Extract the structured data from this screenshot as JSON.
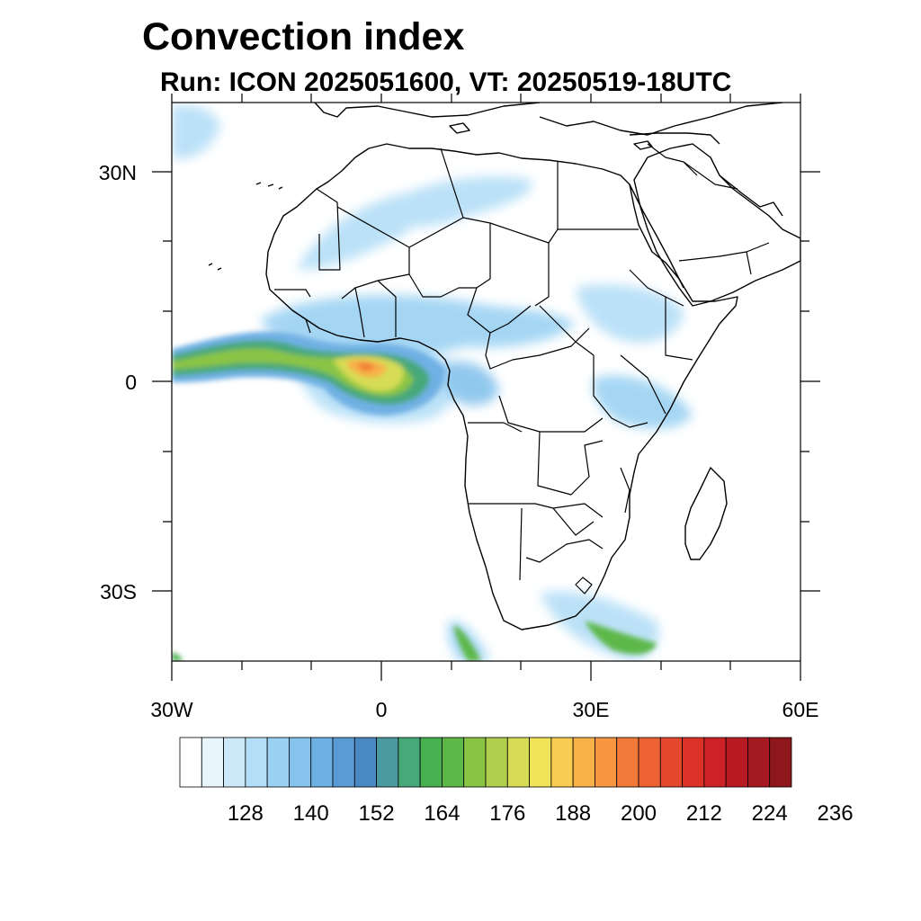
{
  "title": "Convection index",
  "subtitle": "Run: ICON 2025051600,  VT: 20250519-18UTC",
  "lat_labels": [
    "30N",
    "0",
    "30S"
  ],
  "lon_labels": [
    "30W",
    "0",
    "30E",
    "60E"
  ],
  "colorbar": {
    "colors": [
      "#ffffff",
      "#e8f4fc",
      "#cde9f9",
      "#b4def7",
      "#9bd2f3",
      "#85c2ec",
      "#6fb0e4",
      "#5a9bd6",
      "#4a88c4",
      "#4a9aa0",
      "#47a87a",
      "#47b050",
      "#5db848",
      "#8ac444",
      "#b0cf4c",
      "#d6dc54",
      "#f0e358",
      "#f8cc50",
      "#f8b048",
      "#f79540",
      "#f27a38",
      "#ec6232",
      "#e4482c",
      "#dc3228",
      "#cc2226",
      "#b81b24",
      "#a41a20",
      "#8e171c"
    ],
    "tick_labels": [
      "128",
      "140",
      "152",
      "164",
      "176",
      "188",
      "200",
      "212",
      "224",
      "236"
    ]
  },
  "map": {
    "lon_range": [
      -30,
      60
    ],
    "lat_range": [
      -40,
      40
    ],
    "projection": "cylindrical-equidistant"
  }
}
